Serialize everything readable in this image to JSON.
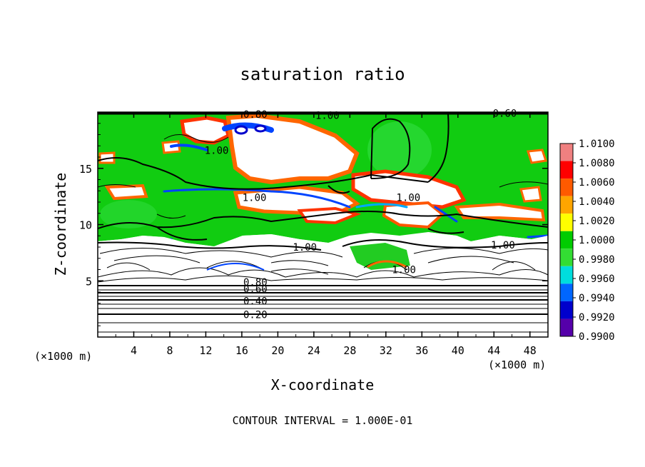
{
  "chart_data": {
    "type": "heatmap",
    "title": "saturation ratio",
    "xlabel": "X-coordinate",
    "ylabel": "Z-coordinate",
    "x_unit": "(×1000 m)",
    "x_unit_right": "(×1000 m)",
    "xlim": [
      0,
      50
    ],
    "ylim": [
      0,
      20
    ],
    "x_ticks": [
      4,
      8,
      12,
      16,
      20,
      24,
      28,
      32,
      36,
      40,
      44,
      48
    ],
    "y_ticks": [
      5,
      10,
      15
    ],
    "footer": "CONTOUR INTERVAL = 1.000E-01",
    "colorbar": {
      "levels": [
        "1.0100",
        "1.0080",
        "1.0060",
        "1.0040",
        "1.0020",
        "1.0000",
        "0.9980",
        "0.9960",
        "0.9940",
        "0.9920",
        "0.9900"
      ],
      "colors": [
        "#f08080",
        "#ff0000",
        "#ff5a00",
        "#ffa500",
        "#ffff00",
        "#00cc00",
        "#33dd33",
        "#00dddd",
        "#0066ff",
        "#0000cc",
        "#5500aa"
      ]
    },
    "contour_labels": [
      {
        "text": "0.80",
        "x": 17.5,
        "z": 19.8
      },
      {
        "text": "1.00",
        "x": 25.5,
        "z": 19.7
      },
      {
        "text": "0.60",
        "x": 45.2,
        "z": 19.9
      },
      {
        "text": "1.00",
        "x": 13.2,
        "z": 16.6
      },
      {
        "text": "1.00",
        "x": 17.4,
        "z": 12.4
      },
      {
        "text": "1.00",
        "x": 34.5,
        "z": 12.4
      },
      {
        "text": "1.00",
        "x": 23.0,
        "z": 8.0
      },
      {
        "text": "1.00",
        "x": 45.0,
        "z": 8.2
      },
      {
        "text": "1.00",
        "x": 34.0,
        "z": 6.0
      },
      {
        "text": "0.80",
        "x": 17.5,
        "z": 4.9
      },
      {
        "text": "0.60",
        "x": 17.5,
        "z": 4.3
      },
      {
        "text": "0.40",
        "x": 17.5,
        "z": 3.2
      },
      {
        "text": "0.20",
        "x": 17.5,
        "z": 2.0
      }
    ]
  }
}
